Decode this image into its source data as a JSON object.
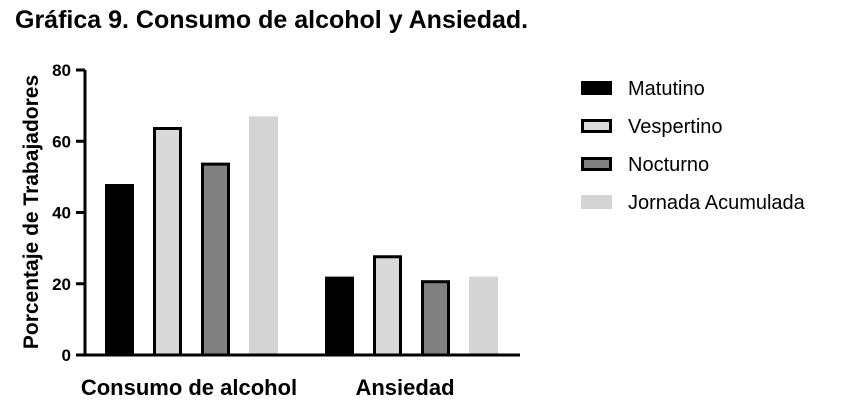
{
  "chart_data": {
    "type": "bar",
    "title": "Gráfica 9. Consumo de alcohol y Ansiedad.",
    "xlabel": "",
    "ylabel": "Porcentaje de Trabajadores",
    "ylim": [
      0,
      80
    ],
    "yticks": [
      "0",
      "20",
      "40",
      "60",
      "80"
    ],
    "categories": [
      "Consumo de alcohol",
      "Ansiedad"
    ],
    "series": [
      {
        "name": "Matutino",
        "values": [
          48,
          22
        ],
        "color": "#000000",
        "stroke": "#000000"
      },
      {
        "name": "Vespertino",
        "values": [
          64,
          28
        ],
        "color": "#d9d9d9",
        "stroke": "#000000"
      },
      {
        "name": "Nocturno",
        "values": [
          54,
          21
        ],
        "color": "#808080",
        "stroke": "#000000"
      },
      {
        "name": "Jornada Acumulada",
        "values": [
          67,
          22
        ],
        "color": "#d4d4d4",
        "stroke": "none"
      }
    ],
    "legend_position": "right",
    "grid": false
  }
}
